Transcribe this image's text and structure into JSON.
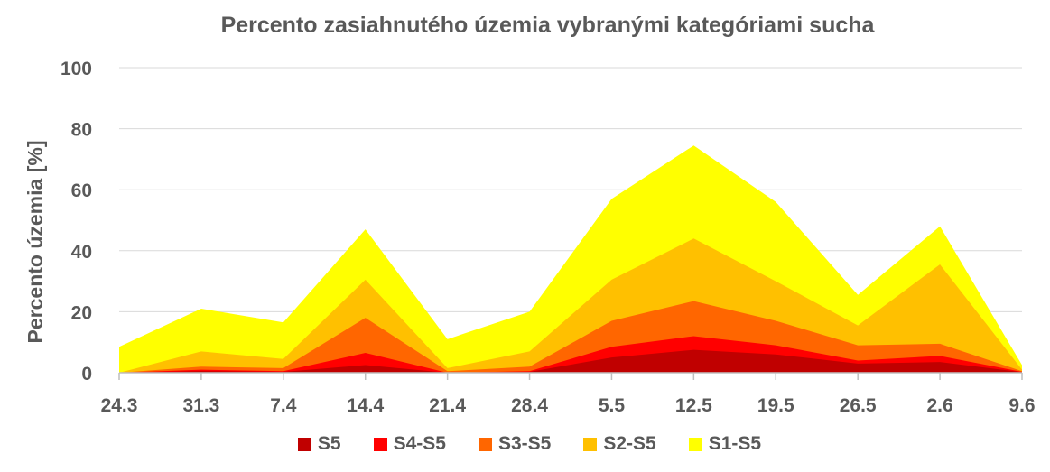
{
  "chart_data": {
    "type": "area",
    "title": "Percento zasiahnutého územia vybranými kategóriami sucha",
    "ylabel": "Percento územia  [%]",
    "xlabel": "",
    "categories": [
      "24.3",
      "31.3",
      "7.4",
      "14.4",
      "21.4",
      "28.4",
      "5.5",
      "12.5",
      "19.5",
      "26.5",
      "2.6",
      "9.6"
    ],
    "ylim": [
      0,
      100
    ],
    "yticks": [
      0,
      20,
      40,
      60,
      80,
      100
    ],
    "grid": true,
    "legend_position": "bottom",
    "series": [
      {
        "name": "S1-S5",
        "color": "#FFFF00",
        "values": [
          8.5,
          21,
          16.5,
          47,
          11,
          20,
          57,
          74.5,
          56,
          25.5,
          48,
          2.5
        ]
      },
      {
        "name": "S2-S5",
        "color": "#FFC000",
        "values": [
          0,
          7,
          4.5,
          30.5,
          1.5,
          7,
          30.5,
          44,
          30,
          15.5,
          35.5,
          1
        ]
      },
      {
        "name": "S3-S5",
        "color": "#FF6600",
        "values": [
          0,
          2,
          1.5,
          18,
          0.5,
          2,
          17,
          23.5,
          17,
          9,
          9.5,
          0.5
        ]
      },
      {
        "name": "S4-S5",
        "color": "#FF0000",
        "values": [
          0,
          1,
          0.5,
          6.5,
          0,
          0.5,
          8.5,
          12,
          9,
          4,
          5.5,
          0.3
        ]
      },
      {
        "name": "S5",
        "color": "#C00000",
        "values": [
          0,
          0.5,
          0.3,
          2.5,
          0,
          0.3,
          5,
          7.5,
          6,
          3,
          3.5,
          0.2
        ]
      }
    ],
    "legend_order": [
      "S5",
      "S4-S5",
      "S3-S5",
      "S2-S5",
      "S1-S5"
    ]
  }
}
